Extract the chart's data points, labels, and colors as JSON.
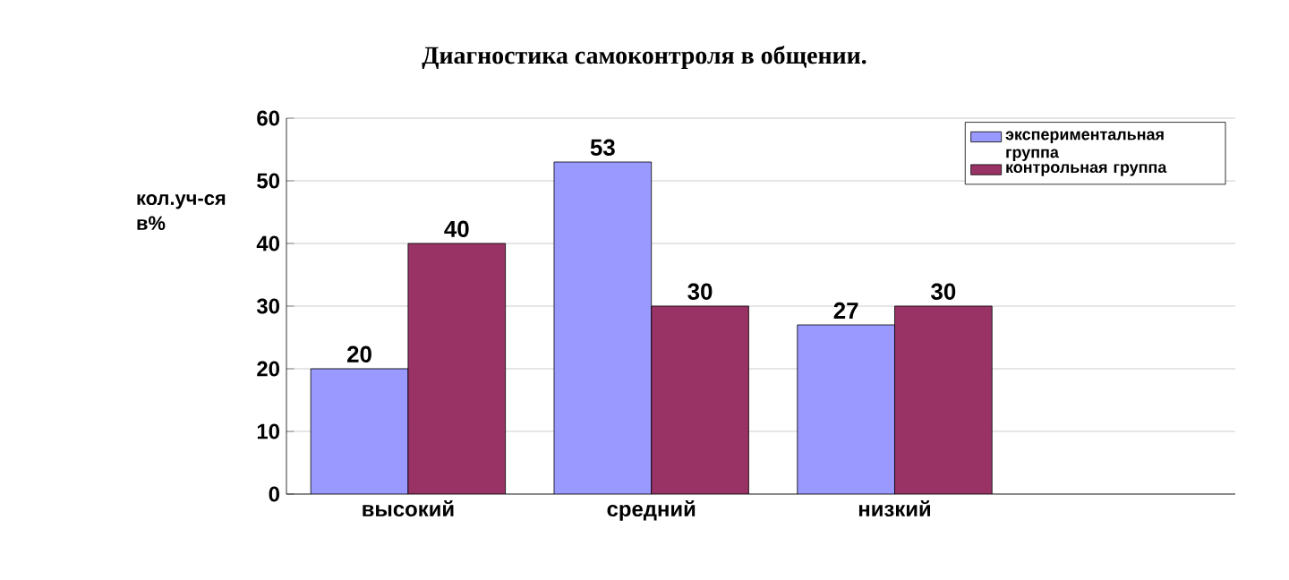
{
  "chart_data": {
    "type": "bar",
    "title": "Диагностика самоконтроля в общении.",
    "ylabel": "кол.уч-ся в%",
    "categories": [
      "высокий",
      "средний",
      "низкий"
    ],
    "series": [
      {
        "name": "экспериментальная группа",
        "color": "#9999ff",
        "values": [
          20,
          53,
          27
        ]
      },
      {
        "name": "контрольная группа",
        "color": "#993366",
        "values": [
          40,
          30,
          30
        ]
      }
    ],
    "ylim": [
      0,
      60
    ],
    "yticks": [
      0,
      10,
      20,
      30,
      40,
      50,
      60
    ],
    "grid": "y",
    "legend": "top right",
    "data_labels": true
  }
}
